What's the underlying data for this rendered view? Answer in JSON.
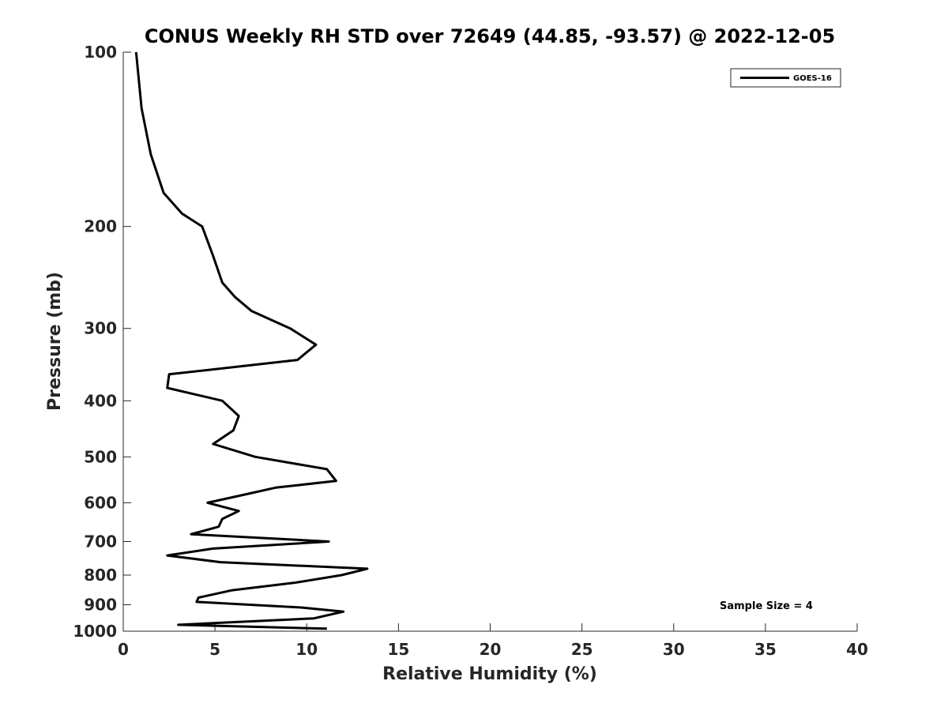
{
  "chart_data": {
    "type": "line",
    "title": "CONUS Weekly RH STD over 72649 (44.85, -93.57) @ 2022-12-05",
    "xlabel": "Relative Humidity (%)",
    "ylabel": "Pressure (mb)",
    "xlim": [
      0,
      40
    ],
    "ylim": [
      100,
      1000
    ],
    "yscale": "log",
    "yreversed": true,
    "xticks": [
      0,
      5,
      10,
      15,
      20,
      25,
      30,
      35,
      40
    ],
    "xtick_labels": [
      "0",
      "5",
      "10",
      "15",
      "20",
      "25",
      "30",
      "35",
      "40"
    ],
    "yticks": [
      100,
      200,
      300,
      400,
      500,
      600,
      700,
      800,
      900,
      1000
    ],
    "ytick_labels": [
      "100",
      "200",
      "300",
      "400",
      "500",
      "600",
      "700",
      "800",
      "900",
      "1000"
    ],
    "legend": {
      "position": "top-right",
      "entries": [
        "GOES-16"
      ]
    },
    "annotation": "Sample Size = 4",
    "series": [
      {
        "name": "GOES-16",
        "color": "#000000",
        "points": [
          [
            0.7,
            100
          ],
          [
            1.0,
            125
          ],
          [
            1.5,
            150
          ],
          [
            2.2,
            175
          ],
          [
            3.2,
            190
          ],
          [
            4.3,
            200
          ],
          [
            4.9,
            225
          ],
          [
            5.4,
            250
          ],
          [
            6.1,
            265
          ],
          [
            7.0,
            280
          ],
          [
            9.1,
            300
          ],
          [
            10.5,
            320
          ],
          [
            9.5,
            340
          ],
          [
            2.5,
            360
          ],
          [
            2.4,
            380
          ],
          [
            5.4,
            400
          ],
          [
            6.3,
            425
          ],
          [
            6.0,
            450
          ],
          [
            4.9,
            475
          ],
          [
            7.2,
            500
          ],
          [
            11.1,
            525
          ],
          [
            11.6,
            550
          ],
          [
            8.3,
            565
          ],
          [
            6.7,
            580
          ],
          [
            4.6,
            600
          ],
          [
            6.3,
            620
          ],
          [
            5.4,
            640
          ],
          [
            5.2,
            660
          ],
          [
            3.7,
            680
          ],
          [
            11.2,
            700
          ],
          [
            4.9,
            720
          ],
          [
            2.4,
            740
          ],
          [
            5.3,
            760
          ],
          [
            13.3,
            780
          ],
          [
            11.9,
            800
          ],
          [
            9.3,
            825
          ],
          [
            5.9,
            850
          ],
          [
            4.1,
            875
          ],
          [
            4.0,
            890
          ],
          [
            9.7,
            910
          ],
          [
            12.0,
            925
          ],
          [
            10.4,
            950
          ],
          [
            3.0,
            975
          ],
          [
            11.1,
            990
          ]
        ]
      }
    ]
  }
}
